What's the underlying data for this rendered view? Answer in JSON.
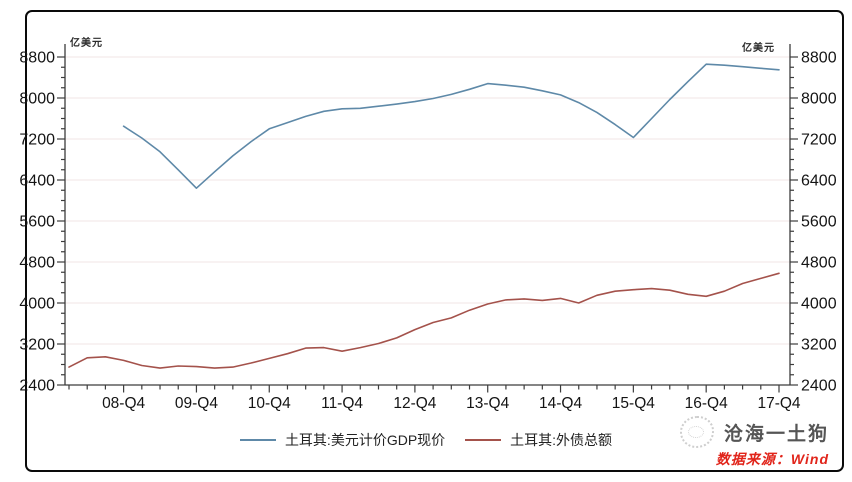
{
  "chart": {
    "unit_left": "亿美元",
    "unit_right": "亿美元"
  },
  "chart_data": {
    "type": "line",
    "title": "",
    "unit": "亿美元",
    "grid": "horizontal",
    "legend_position": "bottom",
    "ylim": [
      2400,
      8800
    ],
    "y_interval": 800,
    "y_minor_interval": 200,
    "y_ticks": [
      2400,
      3200,
      4000,
      4800,
      5600,
      6400,
      7200,
      8000,
      8800
    ],
    "x_major_labels": [
      "08-Q4",
      "09-Q4",
      "10-Q4",
      "11-Q4",
      "12-Q4",
      "13-Q4",
      "14-Q4",
      "15-Q4",
      "16-Q4",
      "17-Q4"
    ],
    "x": [
      "08-Q1",
      "08-Q2",
      "08-Q3",
      "08-Q4",
      "09-Q1",
      "09-Q2",
      "09-Q3",
      "09-Q4",
      "10-Q1",
      "10-Q2",
      "10-Q3",
      "10-Q4",
      "11-Q1",
      "11-Q2",
      "11-Q3",
      "11-Q4",
      "12-Q1",
      "12-Q2",
      "12-Q3",
      "12-Q4",
      "13-Q1",
      "13-Q2",
      "13-Q3",
      "13-Q4",
      "14-Q1",
      "14-Q2",
      "14-Q3",
      "14-Q4",
      "15-Q1",
      "15-Q2",
      "15-Q3",
      "15-Q4",
      "16-Q1",
      "16-Q2",
      "16-Q3",
      "16-Q4",
      "17-Q1",
      "17-Q2",
      "17-Q3",
      "17-Q4"
    ],
    "series": [
      {
        "name": "土耳其:美元计价GDP现价",
        "color": "#5e89a8",
        "values": [
          null,
          null,
          null,
          7450,
          7220,
          6950,
          6600,
          6240,
          6560,
          6870,
          7150,
          7400,
          7520,
          7640,
          7740,
          7790,
          7800,
          7840,
          7880,
          7930,
          7990,
          8070,
          8170,
          8280,
          8250,
          8210,
          8140,
          8060,
          7910,
          7720,
          7480,
          7230,
          7600,
          7970,
          8320,
          8660,
          8640,
          8610,
          8580,
          8550
        ]
      },
      {
        "name": "土耳其:外债总额",
        "color": "#a4524b",
        "values": [
          2750,
          2930,
          2950,
          2880,
          2780,
          2730,
          2770,
          2760,
          2730,
          2750,
          2830,
          2920,
          3010,
          3120,
          3130,
          3060,
          3130,
          3210,
          3320,
          3480,
          3620,
          3710,
          3860,
          3980,
          4060,
          4080,
          4050,
          4090,
          4000,
          4150,
          4230,
          4260,
          4280,
          4250,
          4170,
          4130,
          4230,
          4380,
          4480,
          4580
        ]
      }
    ]
  },
  "legend": {
    "items": [
      {
        "label": "土耳其:美元计价GDP现价",
        "color": "#5e89a8"
      },
      {
        "label": "土耳其:外债总额",
        "color": "#a4524b"
      }
    ]
  },
  "watermark": {
    "brand": "沧海一土狗",
    "source": "数据来源：Wind",
    "source_color": "#e1251b"
  }
}
